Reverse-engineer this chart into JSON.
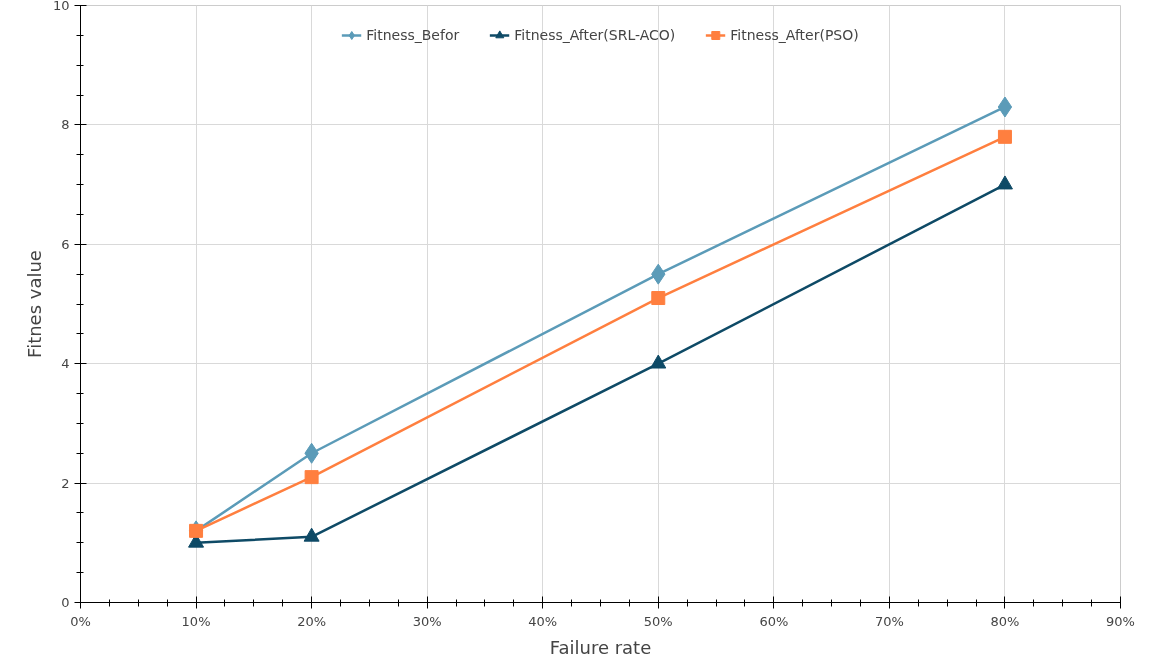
{
  "chart_data": {
    "type": "line",
    "xlabel": "Failure rate",
    "ylabel": "Fitnes value",
    "x": [
      10,
      20,
      50,
      80
    ],
    "series": [
      {
        "name": "Fitness_Befor",
        "color": "#5b9bb8",
        "marker": "diamond",
        "values": [
          1.2,
          2.5,
          5.5,
          8.3
        ]
      },
      {
        "name": "Fitness_After(SRL-ACO)",
        "color": "#0e4a66",
        "marker": "triangle",
        "values": [
          1.0,
          1.1,
          4.0,
          7.0
        ]
      },
      {
        "name": "Fitness_After(PSO)",
        "color": "#ff7f3f",
        "marker": "square",
        "values": [
          1.2,
          2.1,
          5.1,
          7.8
        ]
      }
    ],
    "xlim": [
      0,
      90
    ],
    "xticks": [
      {
        "value": 0,
        "label": "0%"
      },
      {
        "value": 10,
        "label": "10%"
      },
      {
        "value": 20,
        "label": "20%"
      },
      {
        "value": 30,
        "label": "30%"
      },
      {
        "value": 40,
        "label": "40%"
      },
      {
        "value": 50,
        "label": "50%"
      },
      {
        "value": 60,
        "label": "60%"
      },
      {
        "value": 70,
        "label": "70%"
      },
      {
        "value": 80,
        "label": "80%"
      },
      {
        "value": 90,
        "label": "90%"
      }
    ],
    "ylim": [
      0,
      10
    ],
    "yticks": [
      0,
      2,
      4,
      6,
      8,
      10
    ],
    "grid": true,
    "legend": "top",
    "line_style": "solid"
  }
}
